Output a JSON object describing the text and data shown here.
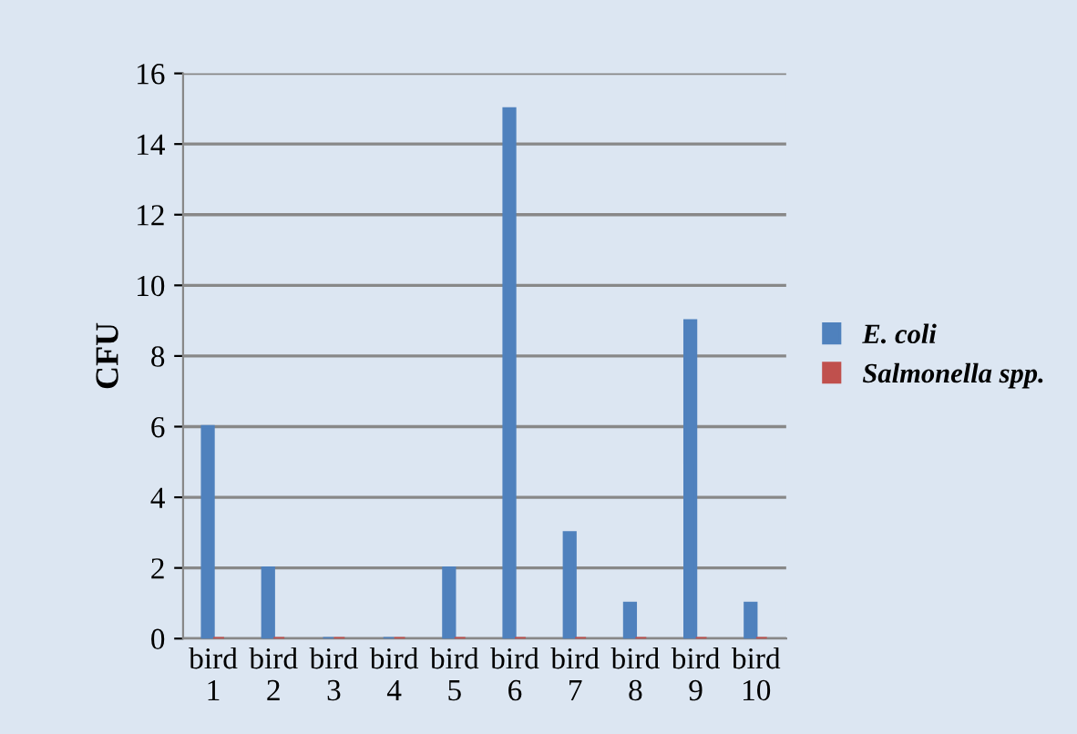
{
  "chart_data": {
    "type": "bar",
    "ylabel": "CFU",
    "categories": [
      "bird\n1",
      "bird\n2",
      "bird\n3",
      "bird\n4",
      "bird\n5",
      "bird\n6",
      "bird\n7",
      "bird\n8",
      "bird\n9",
      "bird\n10"
    ],
    "series": [
      {
        "name": "E. coli",
        "color": "#4f81bd",
        "values": [
          6,
          2,
          0,
          0,
          2,
          15,
          3,
          1,
          9,
          1
        ]
      },
      {
        "name": "Salmonella spp.",
        "color": "#c0504d",
        "values": [
          0,
          0,
          0,
          0,
          0,
          0,
          0,
          0,
          0,
          0
        ]
      }
    ],
    "ylim": [
      0,
      16
    ],
    "yticks": [
      0,
      2,
      4,
      6,
      8,
      10,
      12,
      14,
      16
    ],
    "grid": "y",
    "legend": "right"
  }
}
